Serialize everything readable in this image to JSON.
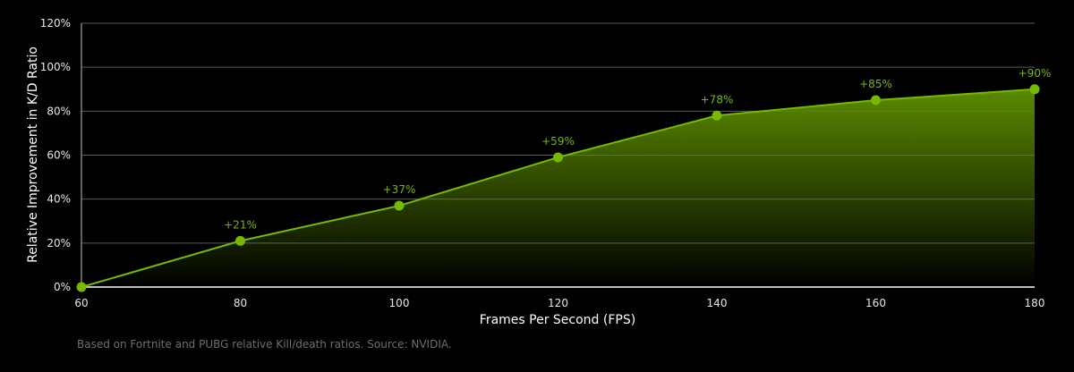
{
  "chart_data": {
    "type": "area",
    "title": "",
    "xlabel": "Frames Per Second (FPS)",
    "ylabel": "Relative Improvement in K/D Ratio",
    "x": [
      60,
      80,
      100,
      120,
      140,
      160,
      180
    ],
    "series": [
      {
        "name": "Relative Improvement in K/D Ratio",
        "values": [
          0,
          21,
          37,
          59,
          78,
          85,
          90
        ]
      }
    ],
    "data_labels": [
      "",
      "+21%",
      "+37%",
      "+59%",
      "+78%",
      "+85%",
      "+90%"
    ],
    "x_ticks": [
      "60",
      "80",
      "100",
      "120",
      "140",
      "160",
      "180"
    ],
    "y_ticks": [
      "0%",
      "20%",
      "40%",
      "60%",
      "80%",
      "100%",
      "120%"
    ],
    "xlim": [
      60,
      180
    ],
    "ylim": [
      0,
      120
    ],
    "grid": true,
    "legend": "none",
    "colors": {
      "line": "#76b900",
      "fill_top": "#5a8a00",
      "background": "#000000"
    }
  },
  "footnote": "Based on Fortnite and PUBG relative Kill/death ratios. Source: NVIDIA."
}
